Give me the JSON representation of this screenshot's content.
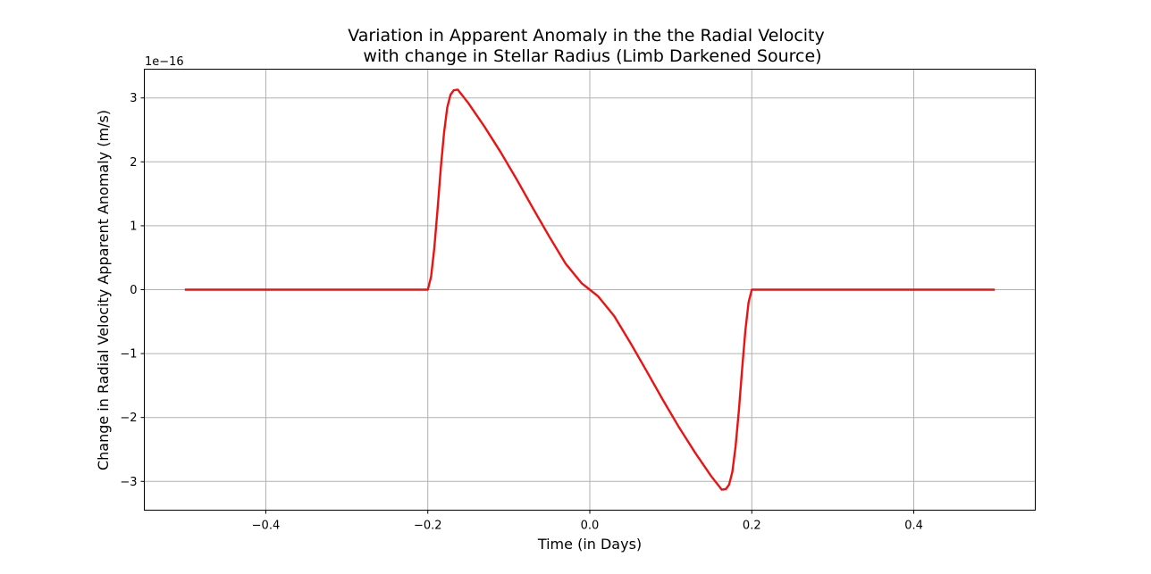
{
  "chart_data": {
    "type": "line",
    "title_line1": "Variation in Apparent Anomaly in the the Radial Velocity",
    "title_line2": "with change in Stellar Radius (Limb Darkened Source)",
    "xlabel": "Time (in Days)",
    "ylabel": "Change in Radial Velocity Apparent Anomaly (m/s)",
    "y_offset_label": "1e−16",
    "xlim": [
      -0.55,
      0.55
    ],
    "ylim": [
      -3.45,
      3.45
    ],
    "x_ticks": [
      -0.4,
      -0.2,
      0.0,
      0.2,
      0.4
    ],
    "x_tick_labels": [
      "−0.4",
      "−0.2",
      "0.0",
      "0.2",
      "0.4"
    ],
    "y_ticks": [
      -3,
      -2,
      -1,
      0,
      1,
      2,
      3
    ],
    "y_tick_labels": [
      "−3",
      "−2",
      "−1",
      "0",
      "1",
      "2",
      "3"
    ],
    "grid": true,
    "series": [
      {
        "color": "#ee1111",
        "x": [
          -0.5,
          -0.45,
          -0.4,
          -0.35,
          -0.3,
          -0.25,
          -0.2,
          -0.196,
          -0.192,
          -0.188,
          -0.184,
          -0.18,
          -0.176,
          -0.172,
          -0.168,
          -0.163,
          -0.15,
          -0.13,
          -0.11,
          -0.09,
          -0.07,
          -0.05,
          -0.03,
          -0.01,
          0.0,
          0.01,
          0.03,
          0.05,
          0.07,
          0.09,
          0.11,
          0.13,
          0.15,
          0.163,
          0.168,
          0.172,
          0.176,
          0.18,
          0.184,
          0.188,
          0.192,
          0.196,
          0.2,
          0.25,
          0.3,
          0.35,
          0.4,
          0.45,
          0.5
        ],
        "y": [
          0,
          0,
          0,
          0,
          0,
          0,
          0,
          0.2,
          0.65,
          1.25,
          1.9,
          2.45,
          2.85,
          3.05,
          3.12,
          3.13,
          2.92,
          2.55,
          2.15,
          1.72,
          1.27,
          0.83,
          0.41,
          0.1,
          0.0,
          -0.1,
          -0.41,
          -0.83,
          -1.27,
          -1.72,
          -2.15,
          -2.55,
          -2.92,
          -3.13,
          -3.12,
          -3.05,
          -2.85,
          -2.45,
          -1.9,
          -1.25,
          -0.65,
          -0.2,
          0,
          0,
          0,
          0,
          0,
          0,
          0
        ]
      }
    ]
  }
}
